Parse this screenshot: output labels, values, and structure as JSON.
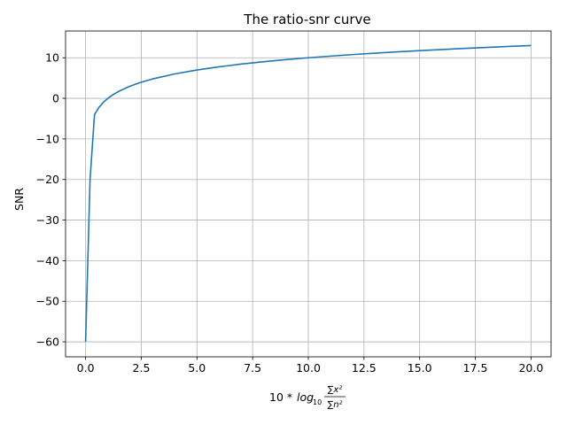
{
  "chart_data": {
    "type": "line",
    "title": "The ratio-snr curve",
    "xlabel": {
      "prefix": "10 * ",
      "log": "log",
      "base": "10",
      "numerator": "∑x²",
      "denominator": "∑n²"
    },
    "ylabel": "SNR",
    "xlim": [
      -0.9,
      20.9
    ],
    "ylim": [
      -63.7,
      16.6
    ],
    "grid": true,
    "line_color": "#1f77b4",
    "x_ticks": [
      0,
      2.5,
      5,
      7.5,
      10,
      12.5,
      15,
      17.5,
      20
    ],
    "x_tick_labels": [
      "0.0",
      "2.5",
      "5.0",
      "7.5",
      "10.0",
      "12.5",
      "15.0",
      "17.5",
      "20.0"
    ],
    "y_ticks": [
      -60,
      -50,
      -40,
      -30,
      -20,
      -10,
      0,
      10
    ],
    "y_tick_labels": [
      "−60",
      "−50",
      "−40",
      "−30",
      "−20",
      "−10",
      "0",
      "10"
    ],
    "series": [
      {
        "x": [
          0.0,
          0.2,
          0.4,
          0.6,
          0.8,
          1.0,
          1.2,
          1.5,
          2.0,
          2.5,
          3.0,
          4.0,
          5.0,
          6.0,
          7.0,
          8.0,
          9.0,
          10.0,
          11.0,
          12.0,
          13.0,
          14.0,
          15.0,
          16.0,
          17.0,
          18.0,
          19.0,
          20.0
        ],
        "y": [
          -60.0,
          -20.0,
          -4.0,
          -2.2,
          -0.97,
          0.0,
          0.79,
          1.76,
          3.01,
          3.98,
          4.77,
          6.02,
          6.99,
          7.78,
          8.45,
          9.03,
          9.54,
          10.0,
          10.41,
          10.79,
          11.14,
          11.46,
          11.76,
          12.04,
          12.3,
          12.55,
          12.79,
          13.01
        ]
      }
    ]
  }
}
